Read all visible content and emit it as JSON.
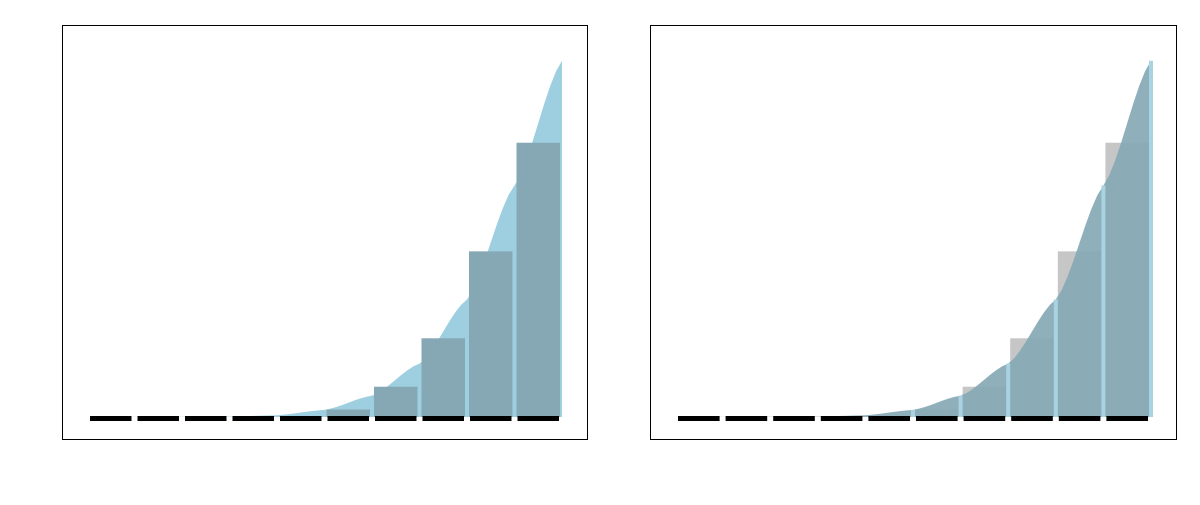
{
  "chart_data": [
    {
      "type": "bar",
      "title": "",
      "xlabel": "",
      "ylabel": "",
      "ylim": [
        0,
        1.05
      ],
      "xlim": [
        0,
        1
      ],
      "bins": 10,
      "bar_values": [
        0,
        0,
        0,
        0,
        0.001,
        0.021,
        0.085,
        0.221,
        0.465,
        0.77
      ],
      "curve": {
        "type": "area",
        "points": [
          [
            0,
            0
          ],
          [
            0.3,
            0.001
          ],
          [
            0.4,
            0.005
          ],
          [
            0.5,
            0.02
          ],
          [
            0.6,
            0.06
          ],
          [
            0.7,
            0.15
          ],
          [
            0.8,
            0.33
          ],
          [
            0.9,
            0.65
          ],
          [
            1.0,
            1.0
          ]
        ]
      },
      "colors": {
        "bar": "#bfbfbf",
        "area": "#9ecfe0",
        "overlap": "#85a8b4",
        "axis_ticks": "#000000"
      },
      "grid": false,
      "legend": "none"
    },
    {
      "type": "bar",
      "title": "",
      "xlabel": "",
      "ylabel": "",
      "ylim": [
        0,
        1.05
      ],
      "xlim": [
        0,
        1
      ],
      "bins": 10,
      "bar_values": [
        0,
        0,
        0,
        0,
        0.001,
        0.021,
        0.085,
        0.221,
        0.465,
        0.77
      ],
      "curve": {
        "type": "area",
        "points": [
          [
            0,
            0
          ],
          [
            0.3,
            0.001
          ],
          [
            0.4,
            0.005
          ],
          [
            0.5,
            0.02
          ],
          [
            0.6,
            0.06
          ],
          [
            0.7,
            0.15
          ],
          [
            0.8,
            0.33
          ],
          [
            0.9,
            0.65
          ],
          [
            1.0,
            1.0
          ]
        ]
      },
      "colors": {
        "bar": "#c6c6c6",
        "area": "#88aab8",
        "overlap": "#85a8b4",
        "axis_ticks": "#000000"
      },
      "grid": false,
      "legend": "none"
    }
  ]
}
